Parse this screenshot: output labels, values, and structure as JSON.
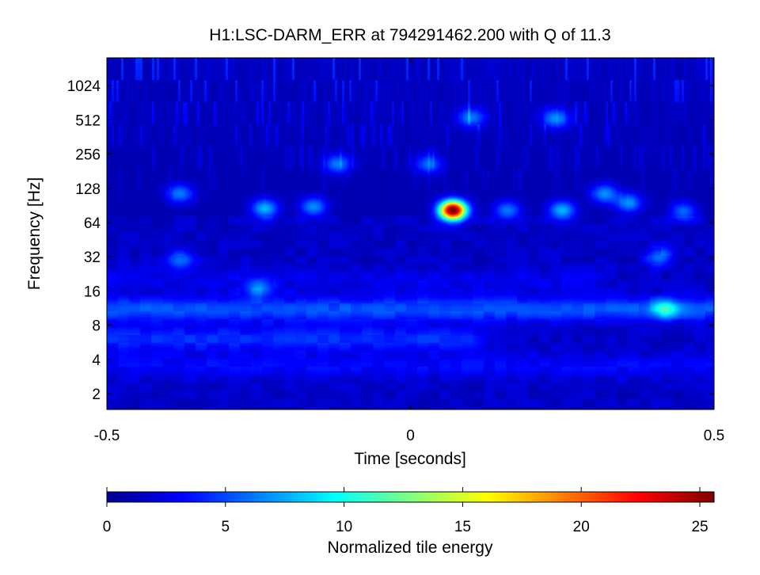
{
  "chart_data": {
    "type": "heatmap",
    "title": "H1:LSC-DARM_ERR at 794291462.200 with Q of 11.3",
    "xlabel": "Time [seconds]",
    "ylabel": "Frequency [Hz]",
    "x_scale": "linear",
    "y_scale": "log2",
    "xlim": [
      -0.5,
      0.5
    ],
    "ylim": [
      1.45,
      1800
    ],
    "xticks": [
      -0.5,
      0,
      0.5
    ],
    "xtick_labels": [
      "-0.5",
      "0",
      "0.5"
    ],
    "yticks": [
      2,
      4,
      8,
      16,
      32,
      64,
      128,
      256,
      512,
      1024
    ],
    "ytick_labels": [
      "2",
      "4",
      "8",
      "16",
      "32",
      "64",
      "128",
      "256",
      "512",
      "1024"
    ],
    "grid": false,
    "colormap": "jet",
    "colorbar": {
      "label": "Normalized tile energy",
      "range": [
        0,
        25.6
      ],
      "ticks": [
        0,
        5,
        10,
        15,
        20,
        25
      ],
      "tick_labels": [
        "0",
        "5",
        "10",
        "15",
        "20",
        "25"
      ],
      "placement": "bottom"
    },
    "background_energy": 1.2,
    "features": [
      {
        "kind": "band",
        "f": 11,
        "t0": -0.5,
        "t1": 0.5,
        "energy": 4.5
      },
      {
        "kind": "band",
        "f": 6,
        "t0": -0.5,
        "t1": 0.1,
        "energy": 3.5
      },
      {
        "kind": "band",
        "f": 3.5,
        "t0": -0.5,
        "t1": 0.5,
        "energy": 2.5
      },
      {
        "kind": "band",
        "f": 20,
        "t0": -0.5,
        "t1": 0.3,
        "energy": 2.0
      },
      {
        "kind": "blob",
        "t": -0.38,
        "f": 30,
        "energy": 4.5
      },
      {
        "kind": "blob",
        "t": 0.41,
        "f": 32,
        "energy": 4.5
      },
      {
        "kind": "blob",
        "t": -0.25,
        "f": 17,
        "energy": 4.5
      },
      {
        "kind": "blob",
        "t": 0.42,
        "f": 11,
        "energy": 6.0
      },
      {
        "kind": "blob",
        "t": -0.24,
        "f": 85,
        "energy": 6.5
      },
      {
        "kind": "blob",
        "t": -0.16,
        "f": 88,
        "energy": 5.5
      },
      {
        "kind": "blob",
        "t": -0.38,
        "f": 115,
        "energy": 5.0
      },
      {
        "kind": "blob",
        "t": -0.12,
        "f": 210,
        "energy": 5.0
      },
      {
        "kind": "blob",
        "t": 0.03,
        "f": 210,
        "energy": 4.5
      },
      {
        "kind": "blob",
        "t": 0.16,
        "f": 82,
        "energy": 5.0
      },
      {
        "kind": "blob",
        "t": 0.25,
        "f": 82,
        "energy": 6.5
      },
      {
        "kind": "blob",
        "t": 0.32,
        "f": 115,
        "energy": 5.5
      },
      {
        "kind": "blob",
        "t": 0.36,
        "f": 95,
        "energy": 5.5
      },
      {
        "kind": "blob",
        "t": 0.45,
        "f": 80,
        "energy": 4.5
      },
      {
        "kind": "blob",
        "t": 0.1,
        "f": 540,
        "energy": 5.0
      },
      {
        "kind": "blob",
        "t": 0.24,
        "f": 530,
        "energy": 5.5
      },
      {
        "kind": "blob",
        "t": 0.07,
        "f": 82,
        "energy": 25.6
      }
    ]
  }
}
